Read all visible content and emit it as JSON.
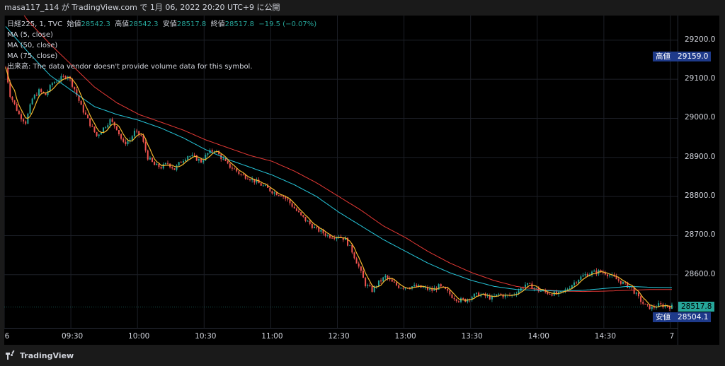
{
  "header": {
    "text": "masa117_114 が TradingView.com で 1月 06, 2022 20:20 UTC+9 に公開"
  },
  "legend": {
    "symbol": "日経225, 1, TVC",
    "open_label": "始値",
    "open_value": "28542.3",
    "high_label": "高値",
    "high_value": "28542.3",
    "low_label": "安値",
    "low_value": "28517.8",
    "close_label": "終値",
    "close_value": "28517.8",
    "change": "−19.5 (−0.07%)",
    "ma5": "MA (5, close)",
    "ma50": "MA (50, close)",
    "ma75": "MA (75, close)",
    "volume": "出来高: The data vendor doesn't provide volume data for this symbol."
  },
  "tags": {
    "high_label": "高値",
    "high_value": "29159.0",
    "last_value": "28517.8",
    "low_label": "安値",
    "low_value": "28504.1"
  },
  "footer": {
    "brand": "TradingView"
  },
  "colors": {
    "up": "#26a69a",
    "down": "#ef5350",
    "ma5": "#f5b82e",
    "ma50": "#26c6da",
    "ma75": "#e53935",
    "tag_bg": "#1e3a8a"
  },
  "chart_data": {
    "type": "line",
    "title": "日経225, 1, TVC",
    "yticks": [
      28600.0,
      28700.0,
      28800.0,
      28900.0,
      29000.0,
      29100.0,
      29200.0
    ],
    "ytick_labels": [
      "28600.0",
      "28700.0",
      "28800.0",
      "28900.0",
      "29000.0",
      "29100.0",
      "29200.0"
    ],
    "ylim": [
      28464,
      29263
    ],
    "x_ticks": [
      {
        "label": "6",
        "i": 0
      },
      {
        "label": "09:30",
        "i": 30
      },
      {
        "label": "10:00",
        "i": 60
      },
      {
        "label": "10:30",
        "i": 90
      },
      {
        "label": "11:00",
        "i": 120
      },
      {
        "label": "12:30",
        "i": 150
      },
      {
        "label": "13:00",
        "i": 180
      },
      {
        "label": "13:30",
        "i": 210
      },
      {
        "label": "14:00",
        "i": 240
      },
      {
        "label": "14:30",
        "i": 270
      },
      {
        "label": "7",
        "i": 300
      }
    ],
    "grid": true,
    "price_anchors": [
      [
        0,
        29130
      ],
      [
        2,
        29060
      ],
      [
        6,
        29010
      ],
      [
        9,
        28990
      ],
      [
        12,
        29050
      ],
      [
        15,
        29070
      ],
      [
        18,
        29060
      ],
      [
        21,
        29090
      ],
      [
        24,
        29100
      ],
      [
        28,
        29110
      ],
      [
        31,
        29075
      ],
      [
        34,
        29030
      ],
      [
        38,
        28985
      ],
      [
        41,
        28955
      ],
      [
        44,
        28975
      ],
      [
        47,
        28995
      ],
      [
        50,
        28975
      ],
      [
        53,
        28935
      ],
      [
        56,
        28945
      ],
      [
        58,
        28965
      ],
      [
        61,
        28955
      ],
      [
        64,
        28900
      ],
      [
        67,
        28880
      ],
      [
        70,
        28875
      ],
      [
        73,
        28885
      ],
      [
        76,
        28870
      ],
      [
        79,
        28890
      ],
      [
        82,
        28905
      ],
      [
        85,
        28900
      ],
      [
        88,
        28890
      ],
      [
        91,
        28910
      ],
      [
        94,
        28920
      ],
      [
        97,
        28900
      ],
      [
        100,
        28880
      ],
      [
        103,
        28870
      ],
      [
        106,
        28855
      ],
      [
        109,
        28850
      ],
      [
        112,
        28840
      ],
      [
        115,
        28830
      ],
      [
        118,
        28820
      ],
      [
        121,
        28810
      ],
      [
        124,
        28805
      ],
      [
        127,
        28790
      ],
      [
        130,
        28770
      ],
      [
        133,
        28750
      ],
      [
        136,
        28735
      ],
      [
        139,
        28720
      ],
      [
        142,
        28710
      ],
      [
        145,
        28700
      ],
      [
        148,
        28698
      ],
      [
        150,
        28700
      ],
      [
        153,
        28690
      ],
      [
        156,
        28660
      ],
      [
        159,
        28620
      ],
      [
        162,
        28575
      ],
      [
        165,
        28560
      ],
      [
        168,
        28580
      ],
      [
        171,
        28595
      ],
      [
        174,
        28580
      ],
      [
        177,
        28570
      ],
      [
        180,
        28568
      ],
      [
        183,
        28570
      ],
      [
        186,
        28568
      ],
      [
        189,
        28565
      ],
      [
        192,
        28560
      ],
      [
        195,
        28570
      ],
      [
        198,
        28560
      ],
      [
        201,
        28545
      ],
      [
        204,
        28535
      ],
      [
        207,
        28535
      ],
      [
        210,
        28545
      ],
      [
        213,
        28550
      ],
      [
        216,
        28545
      ],
      [
        219,
        28540
      ],
      [
        222,
        28550
      ],
      [
        225,
        28545
      ],
      [
        228,
        28548
      ],
      [
        231,
        28560
      ],
      [
        234,
        28575
      ],
      [
        237,
        28570
      ],
      [
        240,
        28560
      ],
      [
        243,
        28555
      ],
      [
        246,
        28552
      ],
      [
        249,
        28550
      ],
      [
        252,
        28560
      ],
      [
        255,
        28575
      ],
      [
        258,
        28590
      ],
      [
        261,
        28600
      ],
      [
        264,
        28605
      ],
      [
        267,
        28608
      ],
      [
        270,
        28605
      ],
      [
        273,
        28595
      ],
      [
        276,
        28585
      ],
      [
        279,
        28575
      ],
      [
        282,
        28565
      ],
      [
        285,
        28540
      ],
      [
        288,
        28520
      ],
      [
        291,
        28515
      ],
      [
        294,
        28522
      ],
      [
        297,
        28520
      ],
      [
        300,
        28518
      ]
    ],
    "ma50_anchors": [
      [
        0,
        29235
      ],
      [
        10,
        29170
      ],
      [
        20,
        29110
      ],
      [
        30,
        29070
      ],
      [
        40,
        29030
      ],
      [
        50,
        29010
      ],
      [
        60,
        28995
      ],
      [
        70,
        28975
      ],
      [
        80,
        28950
      ],
      [
        90,
        28920
      ],
      [
        100,
        28895
      ],
      [
        110,
        28875
      ],
      [
        120,
        28855
      ],
      [
        130,
        28830
      ],
      [
        140,
        28800
      ],
      [
        150,
        28760
      ],
      [
        160,
        28725
      ],
      [
        170,
        28690
      ],
      [
        180,
        28660
      ],
      [
        190,
        28630
      ],
      [
        200,
        28605
      ],
      [
        210,
        28585
      ],
      [
        220,
        28570
      ],
      [
        230,
        28562
      ],
      [
        240,
        28560
      ],
      [
        250,
        28558
      ],
      [
        260,
        28560
      ],
      [
        270,
        28565
      ],
      [
        280,
        28570
      ],
      [
        290,
        28568
      ],
      [
        300,
        28567
      ]
    ],
    "ma75_anchors": [
      [
        0,
        29330
      ],
      [
        10,
        29250
      ],
      [
        20,
        29190
      ],
      [
        30,
        29135
      ],
      [
        40,
        29080
      ],
      [
        50,
        29040
      ],
      [
        60,
        29010
      ],
      [
        70,
        28990
      ],
      [
        80,
        28970
      ],
      [
        90,
        28945
      ],
      [
        100,
        28925
      ],
      [
        110,
        28905
      ],
      [
        120,
        28890
      ],
      [
        130,
        28865
      ],
      [
        140,
        28835
      ],
      [
        150,
        28800
      ],
      [
        160,
        28765
      ],
      [
        170,
        28725
      ],
      [
        180,
        28695
      ],
      [
        190,
        28660
      ],
      [
        200,
        28630
      ],
      [
        210,
        28605
      ],
      [
        220,
        28585
      ],
      [
        230,
        28570
      ],
      [
        240,
        28562
      ],
      [
        250,
        28558
      ],
      [
        260,
        28557
      ],
      [
        270,
        28558
      ],
      [
        280,
        28560
      ],
      [
        290,
        28562
      ],
      [
        300,
        28562
      ]
    ],
    "series": [
      {
        "name": "MA (5, close)"
      },
      {
        "name": "MA (50, close)"
      },
      {
        "name": "MA (75, close)"
      }
    ],
    "last_price": 28517.8,
    "session_high": 29159.0,
    "session_low": 28504.1
  }
}
